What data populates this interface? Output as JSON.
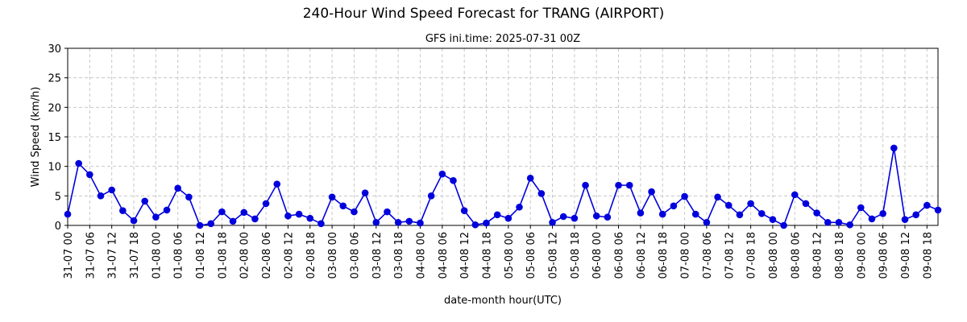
{
  "chart_data": {
    "type": "line",
    "title": "240-Hour Wind Speed Forecast for TRANG (AIRPORT)",
    "subtitle": "GFS ini.time: 2025-07-31 00Z",
    "x_label": "date-month hour(UTC)",
    "y_label": "Wind Speed (km/h)",
    "categories": [
      "31-07 00",
      null,
      "31-07 06",
      null,
      "31-07 12",
      null,
      "31-07 18",
      null,
      "01-08 00",
      null,
      "01-08 06",
      null,
      "01-08 12",
      null,
      "01-08 18",
      null,
      "02-08 00",
      null,
      "02-08 06",
      null,
      "02-08 12",
      null,
      "02-08 18",
      null,
      "03-08 00",
      null,
      "03-08 06",
      null,
      "03-08 12",
      null,
      "03-08 18",
      null,
      "04-08 00",
      null,
      "04-08 06",
      null,
      "04-08 12",
      null,
      "04-08 18",
      null,
      "05-08 00",
      null,
      "05-08 06",
      null,
      "05-08 12",
      null,
      "05-08 18",
      null,
      "06-08 00",
      null,
      "06-08 06",
      null,
      "06-08 12",
      null,
      "06-08 18",
      null,
      "07-08 00",
      null,
      "07-08 06",
      null,
      "07-08 12",
      null,
      "07-08 18",
      null,
      "08-08 00",
      null,
      "08-08 06",
      null,
      "08-08 12",
      null,
      "08-08 18",
      null,
      "09-08 00",
      null,
      "09-08 06",
      null,
      "09-08 12",
      null,
      "09-08 18",
      null
    ],
    "series": [
      {
        "name": "Wind Speed",
        "color": "#0000dd",
        "values": [
          1.9,
          10.5,
          8.6,
          5.0,
          6.0,
          2.5,
          0.8,
          4.1,
          1.4,
          2.6,
          6.3,
          4.8,
          0.0,
          0.3,
          2.3,
          0.7,
          2.2,
          1.1,
          3.7,
          7.0,
          1.6,
          1.9,
          1.2,
          0.3,
          4.8,
          3.3,
          2.3,
          5.5,
          0.5,
          2.3,
          0.5,
          0.7,
          0.4,
          5.0,
          8.7,
          7.6,
          2.5,
          0.1,
          0.4,
          1.8,
          1.2,
          3.1,
          8.0,
          5.4,
          0.5,
          1.5,
          1.2,
          6.8,
          1.6,
          1.4,
          6.8,
          6.8,
          2.1,
          5.7,
          1.9,
          3.3,
          4.9,
          1.9,
          0.5,
          4.8,
          3.4,
          1.8,
          3.7,
          2.0,
          1.0,
          0.0,
          5.2,
          3.7,
          2.1,
          0.5,
          0.5,
          0.1,
          3.0,
          1.1,
          2.0,
          13.1,
          1.0,
          1.8,
          3.4,
          2.6
        ]
      }
    ],
    "ylim": [
      0,
      30
    ],
    "yticks": [
      0,
      5,
      10,
      15,
      20,
      25,
      30
    ],
    "grid": true
  }
}
